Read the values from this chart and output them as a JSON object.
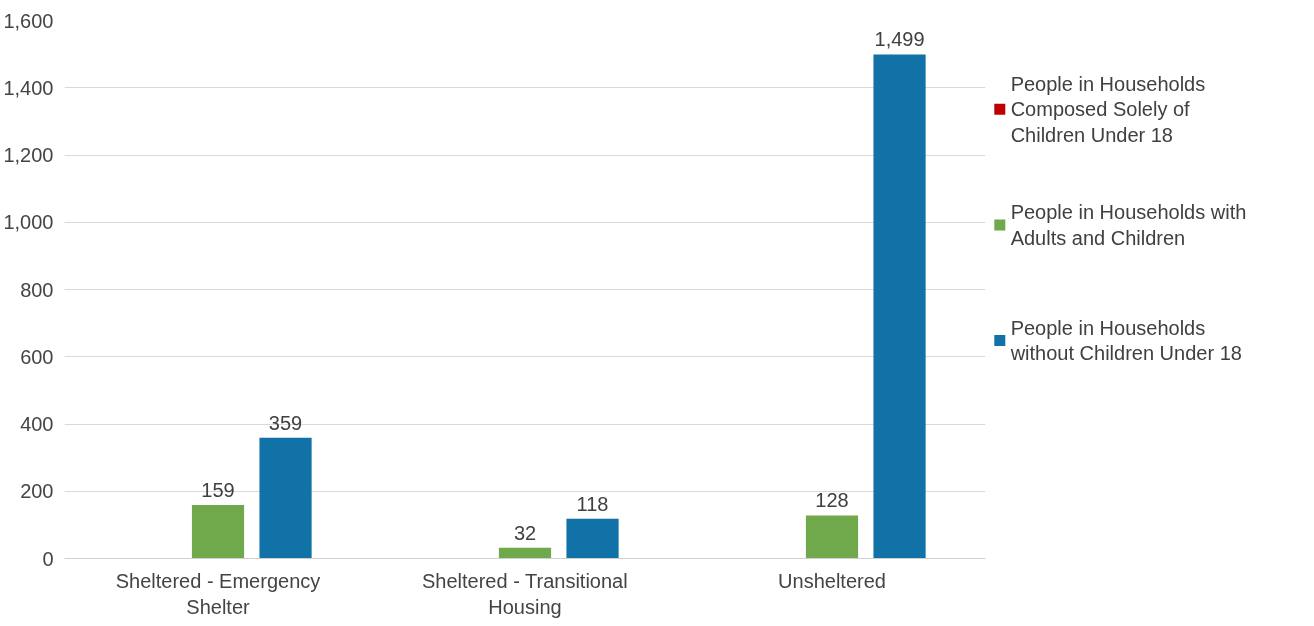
{
  "chart_data": {
    "type": "bar",
    "categories": [
      "Sheltered - Emergency Shelter",
      "Sheltered - Transitional Housing",
      "Unsheltered"
    ],
    "series": [
      {
        "name": "People in Households Composed Solely of Children Under 18",
        "color": "#c00000",
        "values": [
          0,
          0,
          0
        ],
        "value_labels": [
          null,
          null,
          null
        ]
      },
      {
        "name": "People in Households with Adults and Children",
        "color": "#70a84c",
        "values": [
          159,
          32,
          128
        ],
        "value_labels": [
          "159",
          "32",
          "128"
        ]
      },
      {
        "name": "People in Households without Children Under 18",
        "color": "#1172a8",
        "values": [
          359,
          118,
          1499
        ],
        "value_labels": [
          "359",
          "118",
          "1,499"
        ]
      }
    ],
    "ylim": [
      0,
      1600
    ],
    "yticks": [
      {
        "value": 0,
        "label": "0"
      },
      {
        "value": 200,
        "label": "200"
      },
      {
        "value": 400,
        "label": "400"
      },
      {
        "value": 600,
        "label": "600"
      },
      {
        "value": 800,
        "label": "800"
      },
      {
        "value": 1000,
        "label": "1,000"
      },
      {
        "value": 1200,
        "label": "1,200"
      },
      {
        "value": 1400,
        "label": "1,400"
      },
      {
        "value": 1600,
        "label": "1,600"
      }
    ],
    "grid": "y",
    "legend": "right"
  }
}
